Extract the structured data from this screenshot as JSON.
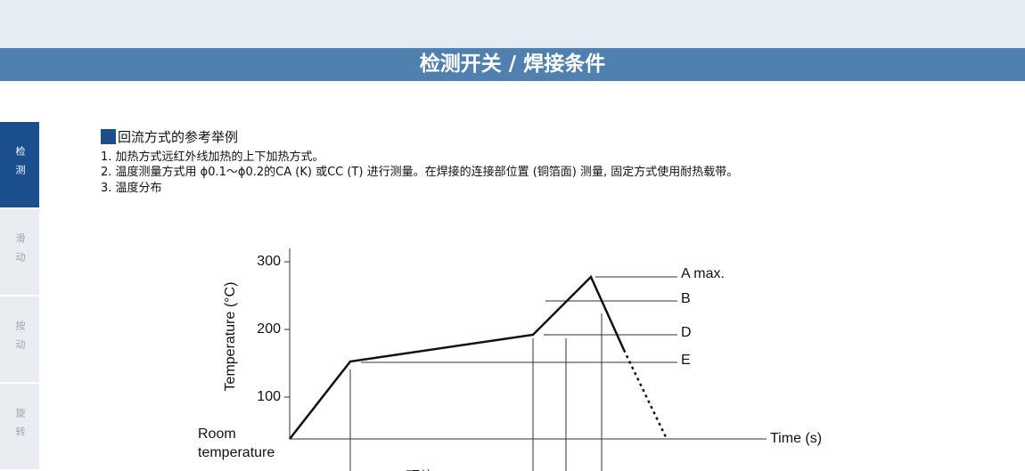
{
  "header": {
    "title": "检测开关 / 焊接条件"
  },
  "sidebar": {
    "tabs": [
      "检测",
      "滑动",
      "按动",
      "旋转"
    ]
  },
  "section": {
    "heading": "回流方式的参考举例",
    "items": [
      "1. 加热方式远红外线加热的上下加热方式。",
      "2. 温度测量方式用 ϕ0.1～ϕ0.2的CA (K) 或CC (T) 进行测量。在焊接的连接部位置 (铜箔面) 测量, 固定方式使用耐热载带。",
      "3. 温度分布"
    ]
  },
  "diagram": {
    "y_axis_label": "Temperature (°C)",
    "y_ticks": [
      300,
      200,
      100
    ],
    "room_label": [
      "Room",
      "temperature"
    ],
    "x_axis_label": "Time (s)",
    "level_labels": [
      "A max.",
      "B",
      "D",
      "E"
    ],
    "zone_label": "预热"
  }
}
